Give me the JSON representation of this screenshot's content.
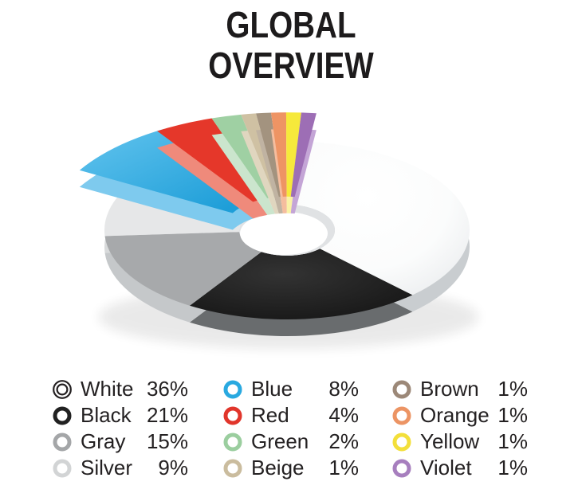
{
  "title": {
    "line1": "GLOBAL",
    "line2": "OVERVIEW"
  },
  "chart_data": {
    "type": "pie",
    "style": "3d-exploded-donut",
    "title": "GLOBAL OVERVIEW",
    "unit": "%",
    "start_angle_deg_from_12_clockwise": 7,
    "slices": [
      {
        "label": "White",
        "value": 36,
        "pct_text": "36%",
        "color": "#ffffff",
        "wall": "#c9cdd0",
        "ring": "#242021",
        "exploded": false,
        "legend_icon": "double-ring"
      },
      {
        "label": "Black",
        "value": 21,
        "pct_text": "21%",
        "color": "#1e1e1e",
        "wall": "#696c6e",
        "ring": "#212121",
        "exploded": false,
        "legend_icon": "ring"
      },
      {
        "label": "Gray",
        "value": 15,
        "pct_text": "15%",
        "color": "#a7a9ab",
        "wall": "#c5c8ca",
        "ring": "#a4a6a8",
        "exploded": false,
        "legend_icon": "ring"
      },
      {
        "label": "Silver",
        "value": 9,
        "pct_text": "9%",
        "color": "#e6e7e8",
        "wall": "#d8dadb",
        "ring": "#d2d4d5",
        "exploded": false,
        "legend_icon": "ring"
      },
      {
        "label": "Blue",
        "value": 8,
        "pct_text": "8%",
        "color": "#29a9e0",
        "wall": "#7ecaee",
        "ring": "#29a9e0",
        "exploded": true,
        "legend_icon": "ring"
      },
      {
        "label": "Red",
        "value": 4,
        "pct_text": "4%",
        "color": "#e5372a",
        "wall": "#ef8a7b",
        "ring": "#e1352b",
        "exploded": true,
        "legend_icon": "ring"
      },
      {
        "label": "Green",
        "value": 2,
        "pct_text": "2%",
        "color": "#9fd0a3",
        "wall": "#cbe5cd",
        "ring": "#9bce9f",
        "exploded": true,
        "legend_icon": "ring"
      },
      {
        "label": "Beige",
        "value": 1,
        "pct_text": "1%",
        "color": "#cfc1a3",
        "wall": "#e0d6bf",
        "ring": "#cabc9e",
        "exploded": true,
        "legend_icon": "ring"
      },
      {
        "label": "Brown",
        "value": 1,
        "pct_text": "1%",
        "color": "#a3937f",
        "wall": "#c0b3a2",
        "ring": "#9c8878",
        "exploded": true,
        "legend_icon": "ring"
      },
      {
        "label": "Orange",
        "value": 1,
        "pct_text": "1%",
        "color": "#ee9464",
        "wall": "#f5bd9e",
        "ring": "#ec9464",
        "exploded": true,
        "legend_icon": "ring"
      },
      {
        "label": "Yellow",
        "value": 1,
        "pct_text": "1%",
        "color": "#f6e93b",
        "wall": "#faf2a5",
        "ring": "#f3df3a",
        "exploded": true,
        "legend_icon": "ring"
      },
      {
        "label": "Violet",
        "value": 1,
        "pct_text": "1%",
        "color": "#9d6eb5",
        "wall": "#c4a5d6",
        "ring": "#a77fbe",
        "exploded": true,
        "legend_icon": "ring"
      }
    ],
    "legend": {
      "position": "bottom",
      "columns": [
        [
          "White",
          "Black",
          "Gray",
          "Silver"
        ],
        [
          "Blue",
          "Red",
          "Green",
          "Beige"
        ],
        [
          "Brown",
          "Orange",
          "Yellow",
          "Violet"
        ]
      ]
    }
  }
}
